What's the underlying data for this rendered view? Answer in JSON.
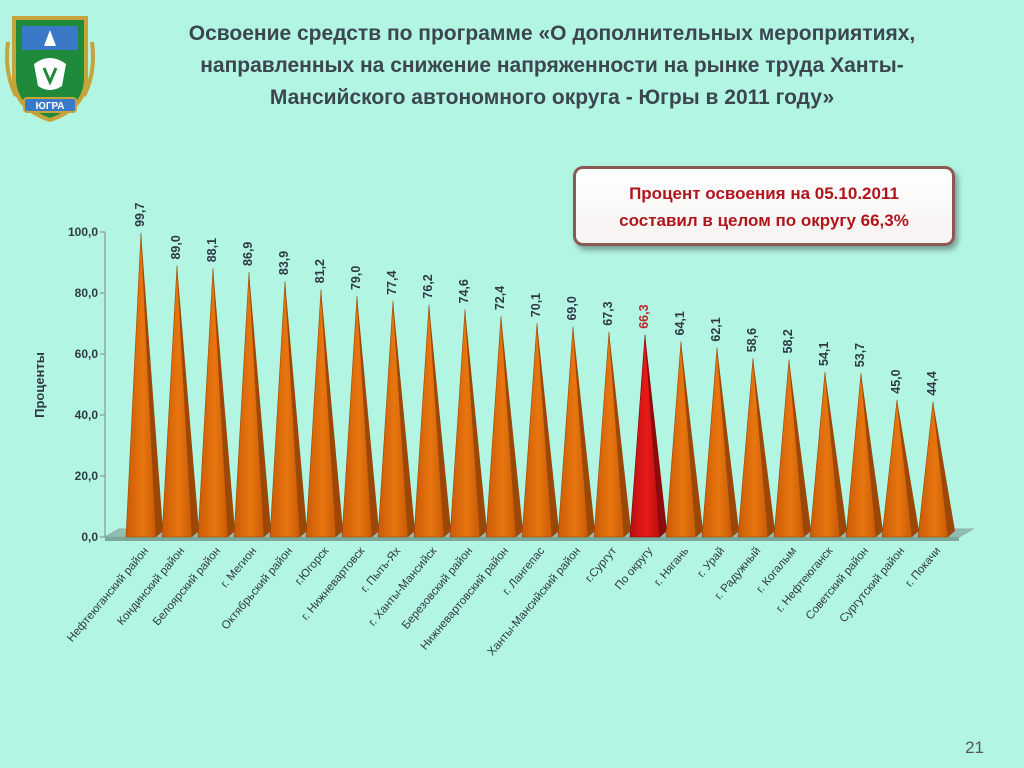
{
  "title_lines": [
    "Освоение средств по программе «О дополнительных мероприятиях,",
    "направленных на снижение напряженности на рынке труда Ханты-",
    "Мансийского автономного округа - Югры в 2011 году»"
  ],
  "emblem": {
    "label": "ЮГРА"
  },
  "callout_lines": [
    "Процент освоения на 05.10.2011",
    "составил в целом по округу 66,3%"
  ],
  "page_number": "21",
  "colors": {
    "background": "#b3f5e3",
    "bar": "#e8760f",
    "bar_highlight": "#e81a1a",
    "highlight_label": "#c0282a",
    "text": "#2f3a44"
  },
  "chart_data": {
    "type": "bar",
    "bar_shape": "cone",
    "ylabel": "Проценты",
    "ylim": [
      0,
      100
    ],
    "yticks": [
      "0,0",
      "20,0",
      "40,0",
      "60,0",
      "80,0",
      "100,0"
    ],
    "ytick_values": [
      0,
      20,
      40,
      60,
      80,
      100
    ],
    "highlight_index": 14,
    "categories": [
      "Нефтеюганский район",
      "Кондинский район",
      "Белоярский район",
      "г. Мегион",
      "Октябрьский район",
      "г.Югорск",
      "г. Нижневартовск",
      "г. Пыть-Ях",
      "г. Ханты-Мансийск",
      "Березовский район",
      "Нижневартовский район",
      "г. Лангепас",
      "Ханты-Мансийский район",
      "г.Сургут",
      "По округу",
      "г. Нягань",
      "г. Урай",
      "г. Радужный",
      "г. Когалым",
      "г. Нефтеюганск",
      "Советский район",
      "Сургутский район",
      "г. Покачи"
    ],
    "values": [
      99.7,
      89.0,
      88.1,
      86.9,
      83.9,
      81.2,
      79.0,
      77.4,
      76.2,
      74.6,
      72.4,
      70.1,
      69.0,
      67.3,
      66.3,
      64.1,
      62.1,
      58.6,
      58.2,
      54.1,
      53.7,
      45.0,
      44.4
    ],
    "value_labels": [
      "99,7",
      "89,0",
      "88,1",
      "86,9",
      "83,9",
      "81,2",
      "79,0",
      "77,4",
      "76,2",
      "74,6",
      "72,4",
      "70,1",
      "69,0",
      "67,3",
      "66,3",
      "64,1",
      "62,1",
      "58,6",
      "58,2",
      "54,1",
      "53,7",
      "45,0",
      "44,4"
    ]
  }
}
